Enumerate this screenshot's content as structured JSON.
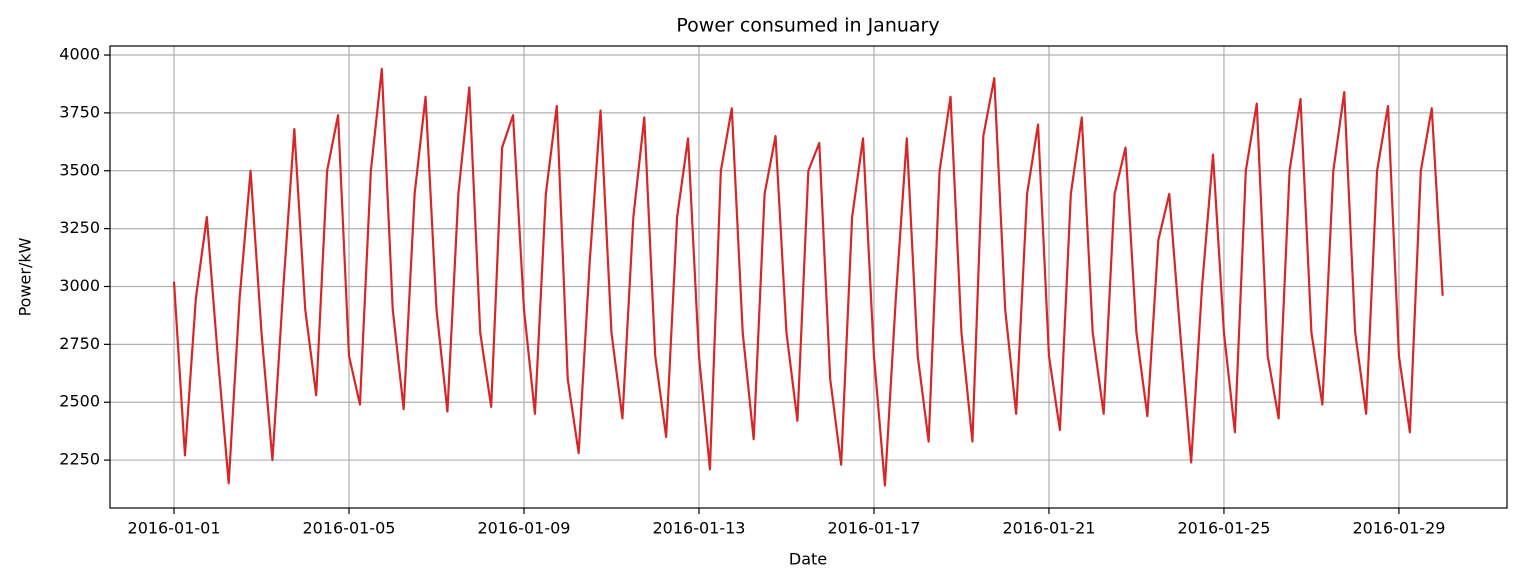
{
  "chart_data": {
    "type": "line",
    "title": "Power consumed in January",
    "x_label": "Date",
    "y_label": "Power/kW",
    "color": "#d62728",
    "grid": true,
    "x": [
      "2016-01-01 00:00",
      "2016-01-01 06:00",
      "2016-01-01 12:00",
      "2016-01-01 18:00",
      "2016-01-02 00:00",
      "2016-01-02 06:00",
      "2016-01-02 12:00",
      "2016-01-02 18:00",
      "2016-01-03 00:00",
      "2016-01-03 06:00",
      "2016-01-03 12:00",
      "2016-01-03 18:00",
      "2016-01-04 00:00",
      "2016-01-04 06:00",
      "2016-01-04 12:00",
      "2016-01-04 18:00",
      "2016-01-05 00:00",
      "2016-01-05 06:00",
      "2016-01-05 12:00",
      "2016-01-05 18:00",
      "2016-01-06 00:00",
      "2016-01-06 06:00",
      "2016-01-06 12:00",
      "2016-01-06 18:00",
      "2016-01-07 00:00",
      "2016-01-07 06:00",
      "2016-01-07 12:00",
      "2016-01-07 18:00",
      "2016-01-08 00:00",
      "2016-01-08 06:00",
      "2016-01-08 12:00",
      "2016-01-08 18:00",
      "2016-01-09 00:00",
      "2016-01-09 06:00",
      "2016-01-09 12:00",
      "2016-01-09 18:00",
      "2016-01-10 00:00",
      "2016-01-10 06:00",
      "2016-01-10 12:00",
      "2016-01-10 18:00",
      "2016-01-11 00:00",
      "2016-01-11 06:00",
      "2016-01-11 12:00",
      "2016-01-11 18:00",
      "2016-01-12 00:00",
      "2016-01-12 06:00",
      "2016-01-12 12:00",
      "2016-01-12 18:00",
      "2016-01-13 00:00",
      "2016-01-13 06:00",
      "2016-01-13 12:00",
      "2016-01-13 18:00",
      "2016-01-14 00:00",
      "2016-01-14 06:00",
      "2016-01-14 12:00",
      "2016-01-14 18:00",
      "2016-01-15 00:00",
      "2016-01-15 06:00",
      "2016-01-15 12:00",
      "2016-01-15 18:00",
      "2016-01-16 00:00",
      "2016-01-16 06:00",
      "2016-01-16 12:00",
      "2016-01-16 18:00",
      "2016-01-17 00:00",
      "2016-01-17 06:00",
      "2016-01-17 12:00",
      "2016-01-17 18:00",
      "2016-01-18 00:00",
      "2016-01-18 06:00",
      "2016-01-18 12:00",
      "2016-01-18 18:00",
      "2016-01-19 00:00",
      "2016-01-19 06:00",
      "2016-01-19 12:00",
      "2016-01-19 18:00",
      "2016-01-20 00:00",
      "2016-01-20 06:00",
      "2016-01-20 12:00",
      "2016-01-20 18:00",
      "2016-01-21 00:00",
      "2016-01-21 06:00",
      "2016-01-21 12:00",
      "2016-01-21 18:00",
      "2016-01-22 00:00",
      "2016-01-22 06:00",
      "2016-01-22 12:00",
      "2016-01-22 18:00",
      "2016-01-23 00:00",
      "2016-01-23 06:00",
      "2016-01-23 12:00",
      "2016-01-23 18:00",
      "2016-01-24 00:00",
      "2016-01-24 06:00",
      "2016-01-24 12:00",
      "2016-01-24 18:00",
      "2016-01-25 00:00",
      "2016-01-25 06:00",
      "2016-01-25 12:00",
      "2016-01-25 18:00",
      "2016-01-26 00:00",
      "2016-01-26 06:00",
      "2016-01-26 12:00",
      "2016-01-26 18:00",
      "2016-01-27 00:00",
      "2016-01-27 06:00",
      "2016-01-27 12:00",
      "2016-01-27 18:00",
      "2016-01-28 00:00",
      "2016-01-28 06:00",
      "2016-01-28 12:00",
      "2016-01-28 18:00",
      "2016-01-29 00:00",
      "2016-01-29 06:00",
      "2016-01-29 12:00",
      "2016-01-29 18:00",
      "2016-01-30 00:00"
    ],
    "values": [
      3020,
      2270,
      2950,
      3300,
      2700,
      2150,
      2950,
      3500,
      2800,
      2250,
      3000,
      3680,
      2900,
      2530,
      3500,
      3740,
      2700,
      2490,
      3500,
      3940,
      2900,
      2470,
      3400,
      3820,
      2900,
      2460,
      3400,
      3860,
      2800,
      2480,
      3600,
      3740,
      2900,
      2450,
      3400,
      3780,
      2600,
      2280,
      3100,
      3760,
      2800,
      2430,
      3300,
      3730,
      2700,
      2350,
      3300,
      3640,
      2700,
      2210,
      3500,
      3770,
      2800,
      2340,
      3400,
      3650,
      2800,
      2420,
      3500,
      3620,
      2600,
      2230,
      3300,
      3640,
      2700,
      2140,
      2950,
      3640,
      2700,
      2330,
      3500,
      3820,
      2800,
      2330,
      3650,
      3900,
      2900,
      2450,
      3400,
      3700,
      2700,
      2380,
      3400,
      3730,
      2800,
      2450,
      3400,
      3600,
      2800,
      2440,
      3200,
      3400,
      2800,
      2240,
      3000,
      3570,
      2800,
      2370,
      3500,
      3790,
      2700,
      2430,
      3500,
      3810,
      2800,
      2490,
      3500,
      3840,
      2800,
      2450,
      3500,
      3780,
      2700,
      2370,
      3500,
      3770,
      2960
    ],
    "xlim": [
      "2015-12-30 12:53",
      "2016-01-31 11:17"
    ],
    "xticks": [
      "2016-01-01",
      "2016-01-05",
      "2016-01-09",
      "2016-01-13",
      "2016-01-17",
      "2016-01-21",
      "2016-01-25",
      "2016-01-29"
    ],
    "ylim": [
      2043,
      4039
    ],
    "yticks": [
      2250,
      2500,
      2750,
      3000,
      3250,
      3500,
      3750,
      4000
    ]
  }
}
